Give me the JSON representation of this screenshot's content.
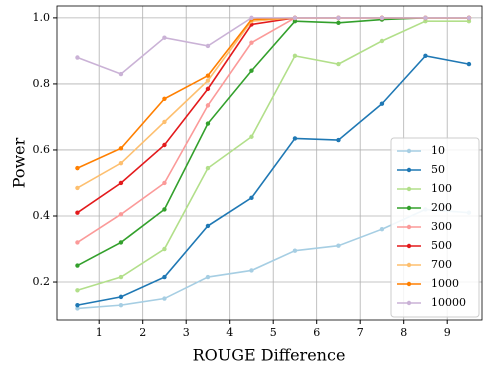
{
  "chart_data": {
    "type": "line",
    "xlabel": "ROUGE Difference",
    "ylabel": "Power",
    "x": [
      0.5,
      1.5,
      2.5,
      3.5,
      4.5,
      5.5,
      6.5,
      7.5,
      8.5,
      9.5
    ],
    "xlim": [
      0.03,
      9.8
    ],
    "xticks": [
      1,
      2,
      3,
      4,
      5,
      6,
      7,
      8,
      9
    ],
    "ylim": [
      0.085,
      1.036
    ],
    "yticks": [
      {
        "value": 0.2,
        "label": "0.2"
      },
      {
        "value": 0.4,
        "label": "0.4"
      },
      {
        "value": 0.6,
        "label": "0.6"
      },
      {
        "value": 0.8,
        "label": "0.8"
      },
      {
        "value": 1.0,
        "label": "1.0"
      }
    ],
    "grid": true,
    "legend": "lower right",
    "series": [
      {
        "name": "10",
        "color": "#a6cee3",
        "values": [
          0.12,
          0.13,
          0.15,
          0.215,
          0.235,
          0.295,
          0.31,
          0.36,
          0.42,
          0.41
        ]
      },
      {
        "name": "50",
        "color": "#1f78b4",
        "values": [
          0.13,
          0.155,
          0.215,
          0.37,
          0.455,
          0.635,
          0.63,
          0.74,
          0.885,
          0.86
        ]
      },
      {
        "name": "100",
        "color": "#b2df8a",
        "values": [
          0.175,
          0.215,
          0.3,
          0.545,
          0.64,
          0.885,
          0.86,
          0.93,
          0.99,
          0.99
        ]
      },
      {
        "name": "200",
        "color": "#33a02c",
        "values": [
          0.25,
          0.32,
          0.42,
          0.68,
          0.84,
          0.99,
          0.985,
          0.995,
          1.0,
          1.0
        ]
      },
      {
        "name": "300",
        "color": "#fb9a99",
        "values": [
          0.32,
          0.405,
          0.5,
          0.735,
          0.925,
          1.0,
          1.0,
          1.0,
          1.0,
          1.0
        ]
      },
      {
        "name": "500",
        "color": "#e31a1c",
        "values": [
          0.41,
          0.5,
          0.615,
          0.785,
          0.98,
          1.0,
          1.0,
          1.0,
          1.0,
          1.0
        ]
      },
      {
        "name": "700",
        "color": "#fdbf6f",
        "values": [
          0.485,
          0.56,
          0.685,
          0.81,
          0.99,
          1.0,
          1.0,
          1.0,
          1.0,
          1.0
        ]
      },
      {
        "name": "1000",
        "color": "#ff7f00",
        "values": [
          0.545,
          0.605,
          0.755,
          0.825,
          0.995,
          1.0,
          1.0,
          1.0,
          1.0,
          1.0
        ]
      },
      {
        "name": "10000",
        "color": "#cab2d6",
        "values": [
          0.88,
          0.83,
          0.94,
          0.915,
          1.0,
          1.0,
          1.0,
          1.0,
          1.0,
          1.0
        ]
      }
    ]
  }
}
